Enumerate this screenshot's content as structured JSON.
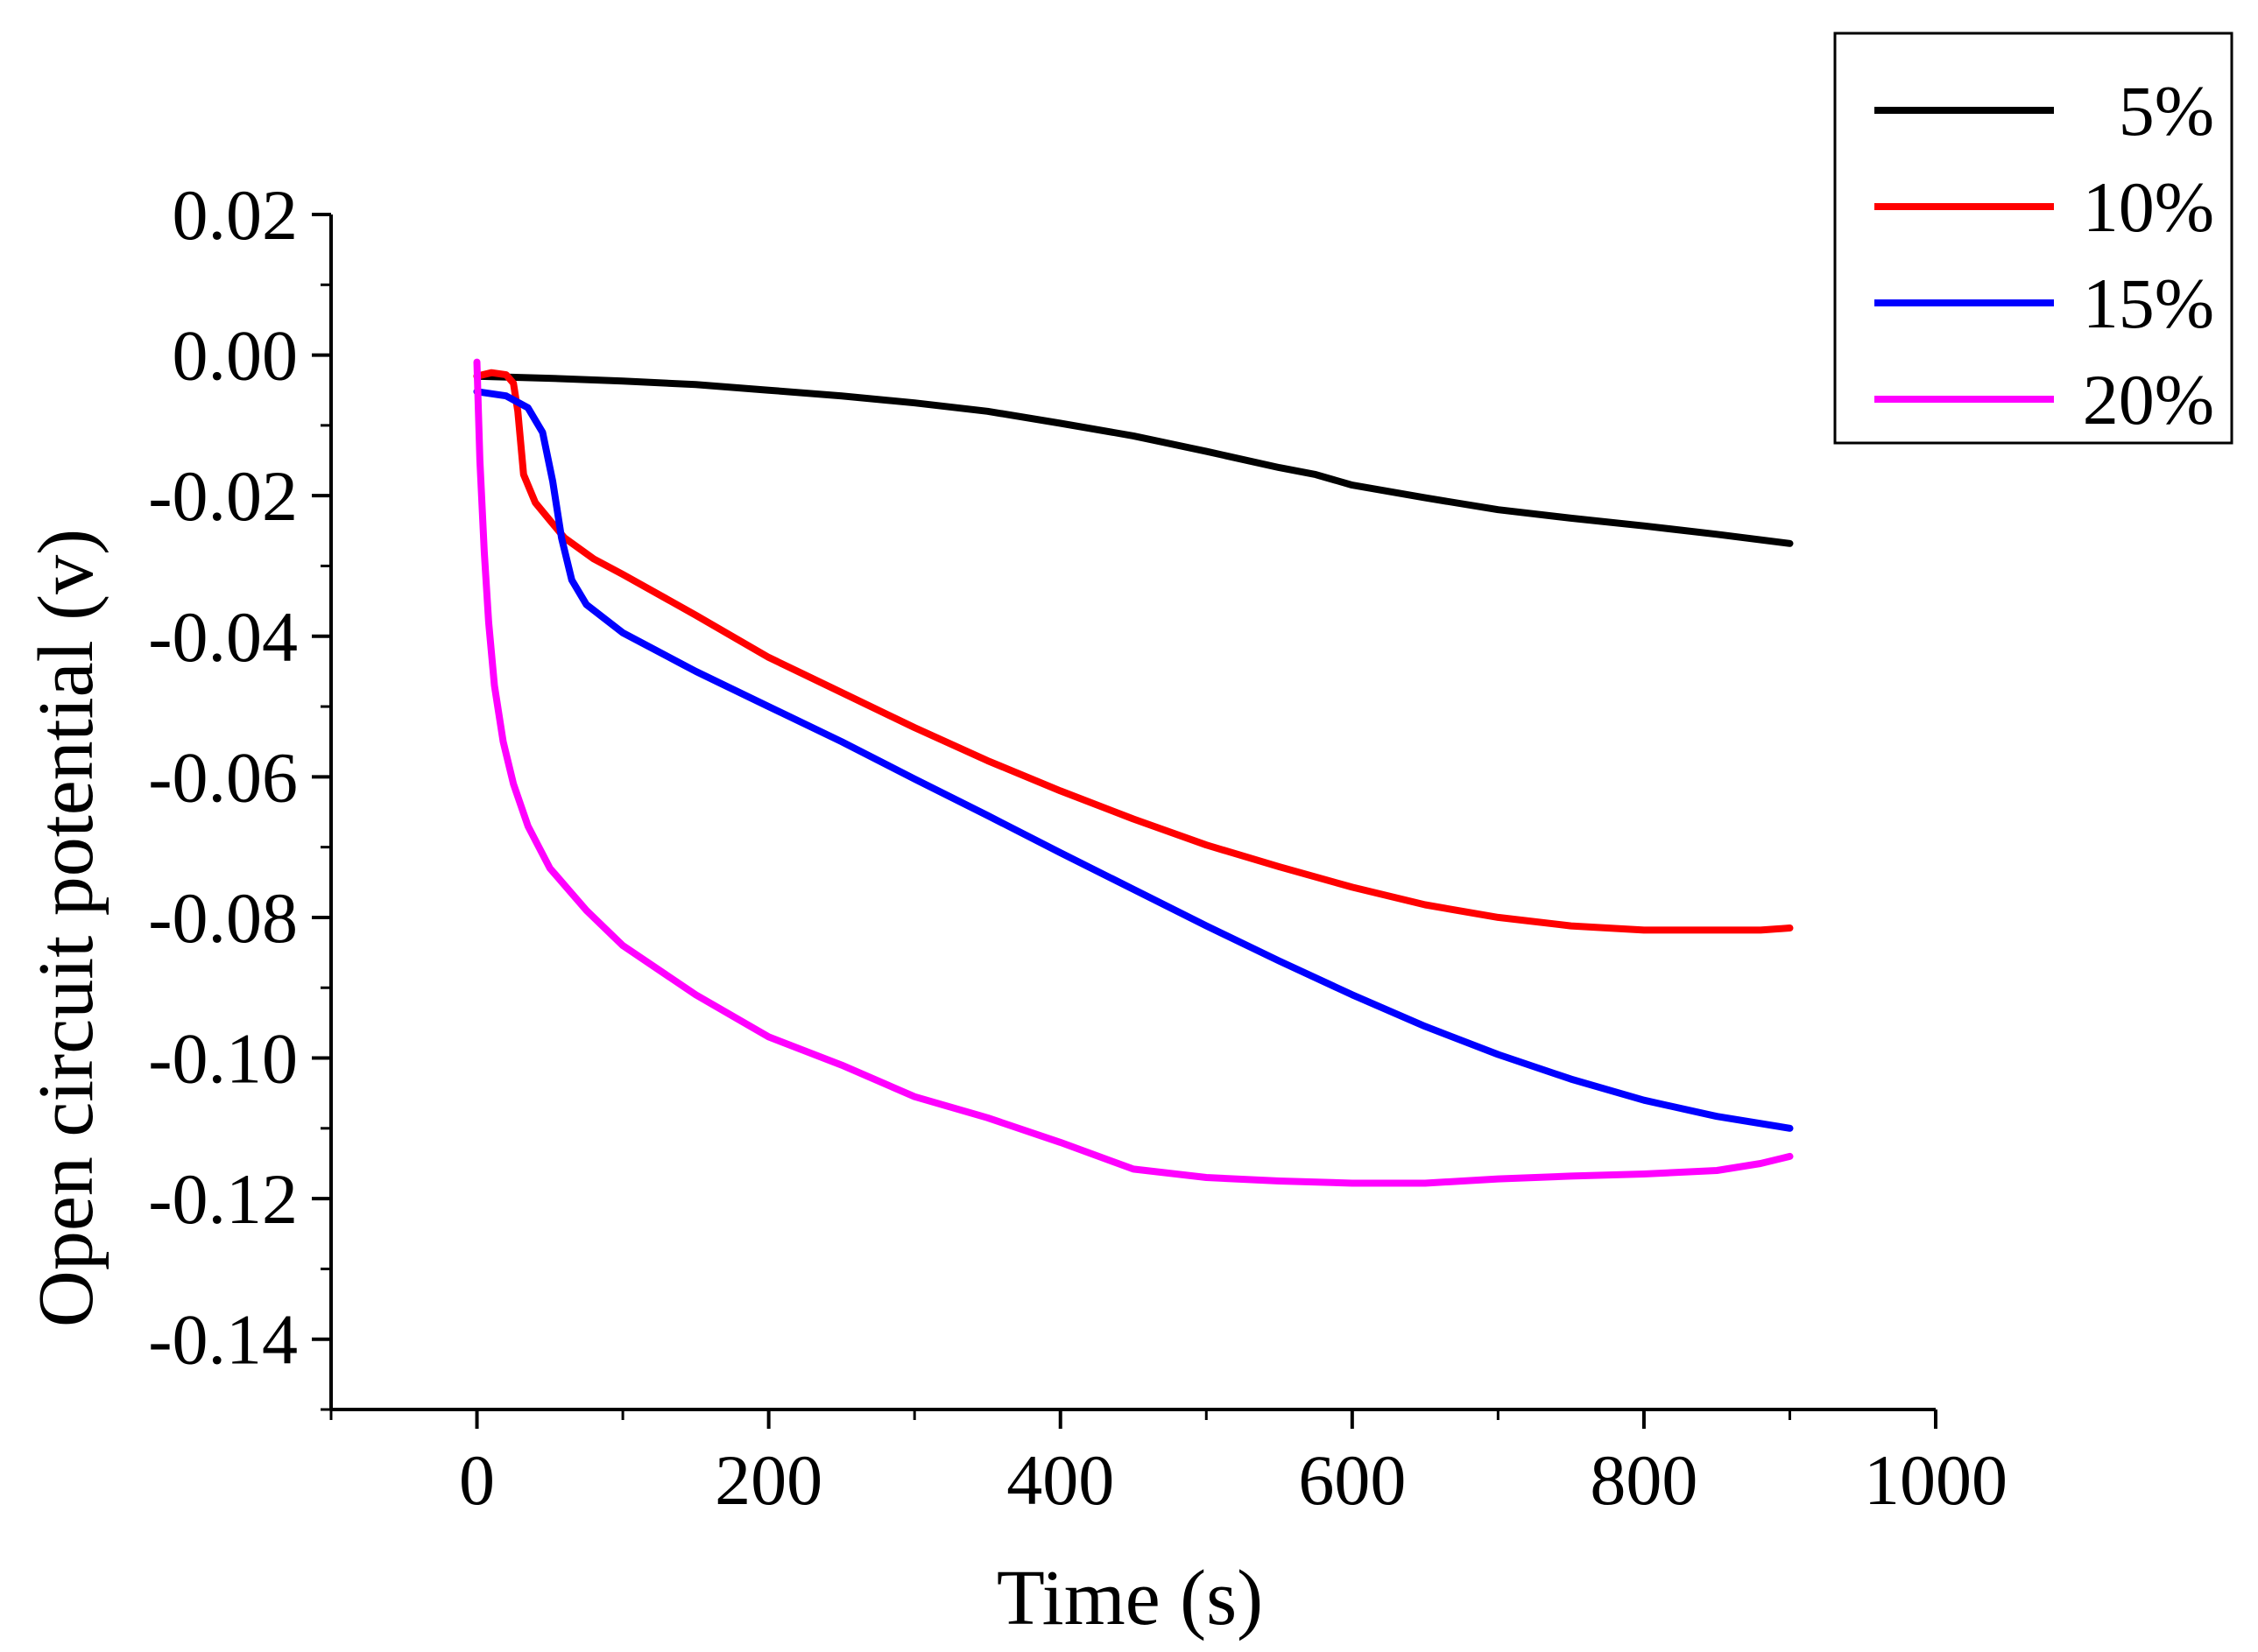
{
  "chart_data": {
    "type": "line",
    "title": "",
    "xlabel": "Time (s)",
    "ylabel": "Open circuit potential (v)",
    "xlim": [
      -100,
      1000
    ],
    "ylim": [
      -0.15,
      0.02
    ],
    "xticks": [
      0,
      200,
      400,
      600,
      800,
      1000
    ],
    "xtick_labels": [
      "0",
      "200",
      "400",
      "600",
      "800",
      "1000"
    ],
    "yticks": [
      0.02,
      0.0,
      -0.02,
      -0.04,
      -0.06,
      -0.08,
      -0.1,
      -0.12,
      -0.14
    ],
    "ytick_labels": [
      "0.02",
      "0.00",
      "-0.02",
      "-0.04",
      "-0.06",
      "-0.08",
      "-0.10",
      "-0.12",
      "-0.14"
    ],
    "grid": false,
    "legend_position": "top-right",
    "series": [
      {
        "name": "5%",
        "color": "#000000",
        "points": [
          [
            0,
            -0.003
          ],
          [
            50,
            -0.0033
          ],
          [
            100,
            -0.0037
          ],
          [
            150,
            -0.0042
          ],
          [
            200,
            -0.005
          ],
          [
            250,
            -0.0058
          ],
          [
            300,
            -0.0068
          ],
          [
            350,
            -0.008
          ],
          [
            400,
            -0.0097
          ],
          [
            450,
            -0.0115
          ],
          [
            500,
            -0.0137
          ],
          [
            550,
            -0.016
          ],
          [
            575,
            -0.017
          ],
          [
            600,
            -0.0185
          ],
          [
            650,
            -0.0203
          ],
          [
            700,
            -0.022
          ],
          [
            750,
            -0.0232
          ],
          [
            800,
            -0.0243
          ],
          [
            850,
            -0.0255
          ],
          [
            900,
            -0.0268
          ]
        ]
      },
      {
        "name": "10%",
        "color": "#ff0000",
        "points": [
          [
            0,
            -0.003
          ],
          [
            10,
            -0.0025
          ],
          [
            20,
            -0.0028
          ],
          [
            25,
            -0.004
          ],
          [
            28,
            -0.008
          ],
          [
            32,
            -0.017
          ],
          [
            40,
            -0.021
          ],
          [
            50,
            -0.0235
          ],
          [
            60,
            -0.026
          ],
          [
            80,
            -0.029
          ],
          [
            100,
            -0.0312
          ],
          [
            150,
            -0.037
          ],
          [
            200,
            -0.043
          ],
          [
            250,
            -0.048
          ],
          [
            300,
            -0.053
          ],
          [
            350,
            -0.0577
          ],
          [
            400,
            -0.062
          ],
          [
            450,
            -0.066
          ],
          [
            500,
            -0.0697
          ],
          [
            550,
            -0.0728
          ],
          [
            600,
            -0.0757
          ],
          [
            650,
            -0.0782
          ],
          [
            700,
            -0.08
          ],
          [
            750,
            -0.0812
          ],
          [
            800,
            -0.0818
          ],
          [
            850,
            -0.0818
          ],
          [
            880,
            -0.0818
          ],
          [
            900,
            -0.0815
          ]
        ]
      },
      {
        "name": "15%",
        "color": "#0000ff",
        "points": [
          [
            0,
            -0.0052
          ],
          [
            20,
            -0.0058
          ],
          [
            35,
            -0.0075
          ],
          [
            45,
            -0.011
          ],
          [
            52,
            -0.018
          ],
          [
            58,
            -0.026
          ],
          [
            65,
            -0.032
          ],
          [
            75,
            -0.0355
          ],
          [
            100,
            -0.0395
          ],
          [
            150,
            -0.045
          ],
          [
            200,
            -0.05
          ],
          [
            250,
            -0.055
          ],
          [
            300,
            -0.0603
          ],
          [
            350,
            -0.0655
          ],
          [
            400,
            -0.0708
          ],
          [
            450,
            -0.076
          ],
          [
            500,
            -0.0812
          ],
          [
            550,
            -0.0862
          ],
          [
            600,
            -0.091
          ],
          [
            650,
            -0.0955
          ],
          [
            700,
            -0.0995
          ],
          [
            750,
            -0.103
          ],
          [
            800,
            -0.106
          ],
          [
            850,
            -0.1083
          ],
          [
            900,
            -0.11
          ]
        ]
      },
      {
        "name": "20%",
        "color": "#ff00ff",
        "points": [
          [
            0,
            -0.001
          ],
          [
            2,
            -0.015
          ],
          [
            5,
            -0.028
          ],
          [
            8,
            -0.038
          ],
          [
            12,
            -0.047
          ],
          [
            18,
            -0.055
          ],
          [
            25,
            -0.061
          ],
          [
            35,
            -0.067
          ],
          [
            50,
            -0.073
          ],
          [
            75,
            -0.079
          ],
          [
            100,
            -0.084
          ],
          [
            150,
            -0.091
          ],
          [
            200,
            -0.097
          ],
          [
            250,
            -0.101
          ],
          [
            300,
            -0.1055
          ],
          [
            350,
            -0.1085
          ],
          [
            400,
            -0.112
          ],
          [
            450,
            -0.1158
          ],
          [
            500,
            -0.117
          ],
          [
            550,
            -0.1175
          ],
          [
            600,
            -0.1178
          ],
          [
            650,
            -0.1178
          ],
          [
            700,
            -0.1172
          ],
          [
            750,
            -0.1168
          ],
          [
            800,
            -0.1165
          ],
          [
            850,
            -0.116
          ],
          [
            880,
            -0.115
          ],
          [
            900,
            -0.114
          ]
        ]
      }
    ]
  }
}
